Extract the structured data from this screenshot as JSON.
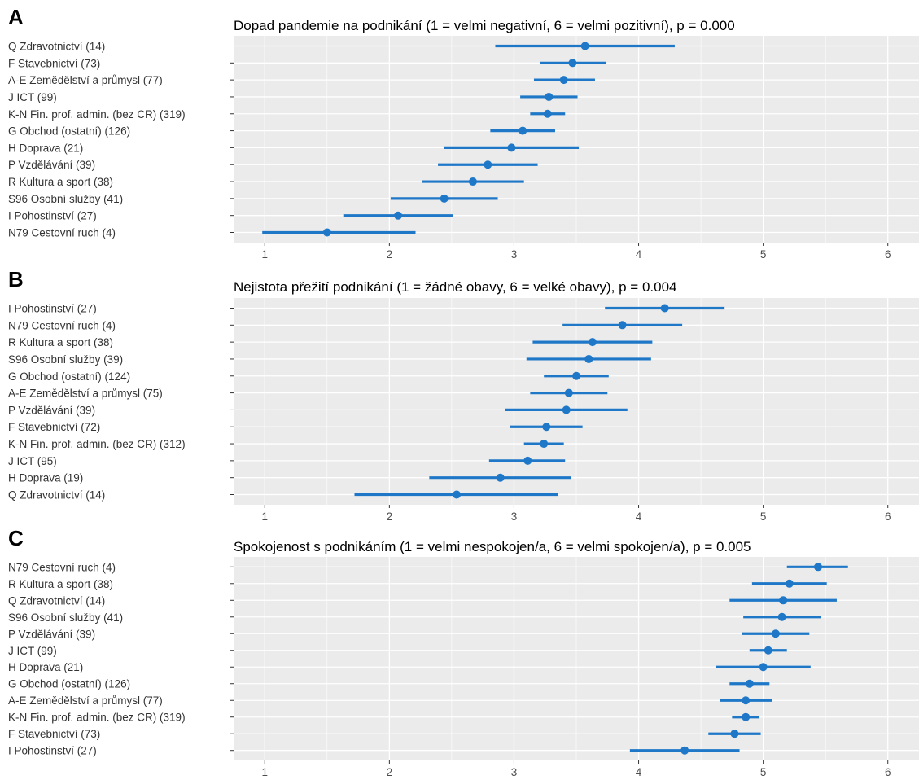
{
  "colors": {
    "panel_bg": "#EBEBEB",
    "grid": "#FFFFFF",
    "series": "#1F77C8",
    "tick": "#333333"
  },
  "chart_data": [
    {
      "type": "scatter",
      "panel": "A",
      "title": "Dopad pandemie na podnikání (1 = velmi negativní, 6 = velmi pozitivní), p = 0.000",
      "xlim": [
        0.75,
        6.25
      ],
      "xticks": [
        1,
        2,
        3,
        4,
        5,
        6
      ],
      "grid": true,
      "categories": [
        "Q Zdravotnictví (14)",
        "F Stavebnictví (73)",
        "A-E Zemědělství a průmysl (77)",
        "J ICT (99)",
        "K-N Fin. prof. admin. (bez CR) (319)",
        "G Obchod (ostatní) (126)",
        "H Doprava (21)",
        "P Vzdělávání (39)",
        "R Kultura a sport (38)",
        "S96 Osobní služby (41)",
        "I Pohostinství (27)",
        "N79 Cestovní ruch (4)"
      ],
      "values": [
        3.57,
        3.47,
        3.4,
        3.28,
        3.27,
        3.07,
        2.98,
        2.79,
        2.67,
        2.44,
        2.07,
        1.5
      ],
      "lower": [
        2.85,
        3.21,
        3.16,
        3.05,
        3.13,
        2.81,
        2.44,
        2.39,
        2.26,
        2.01,
        1.63,
        0.98
      ],
      "upper": [
        4.29,
        3.74,
        3.65,
        3.51,
        3.41,
        3.33,
        3.52,
        3.19,
        3.08,
        2.87,
        2.51,
        2.21
      ]
    },
    {
      "type": "scatter",
      "panel": "B",
      "title": "Nejistota přežití podnikání (1 = žádné obavy, 6 = velké obavy), p = 0.004",
      "xlim": [
        0.75,
        6.25
      ],
      "xticks": [
        1,
        2,
        3,
        4,
        5,
        6
      ],
      "grid": true,
      "categories": [
        "I Pohostinství (27)",
        "N79 Cestovní ruch (4)",
        "R Kultura a sport (38)",
        "S96 Osobní služby (39)",
        "G Obchod (ostatní) (124)",
        "A-E Zemědělství a průmysl (75)",
        "P Vzdělávání (39)",
        "F Stavebnictví (72)",
        "K-N Fin. prof. admin. (bez CR) (312)",
        "J ICT (95)",
        "H Doprava (19)",
        "Q Zdravotnictví (14)"
      ],
      "values": [
        4.21,
        3.87,
        3.63,
        3.6,
        3.5,
        3.44,
        3.42,
        3.26,
        3.24,
        3.11,
        2.89,
        2.54
      ],
      "lower": [
        3.73,
        3.39,
        3.15,
        3.1,
        3.24,
        3.13,
        2.93,
        2.97,
        3.08,
        2.8,
        2.32,
        1.72
      ],
      "upper": [
        4.69,
        4.35,
        4.11,
        4.1,
        3.76,
        3.75,
        3.91,
        3.55,
        3.4,
        3.41,
        3.46,
        3.35
      ]
    },
    {
      "type": "scatter",
      "panel": "C",
      "title": "Spokojenost s podnikáním (1 = velmi nespokojen/a, 6 = velmi spokojen/a), p = 0.005",
      "xlim": [
        0.75,
        6.25
      ],
      "xticks": [
        1,
        2,
        3,
        4,
        5,
        6
      ],
      "grid": true,
      "categories": [
        "N79 Cestovní ruch (4)",
        "R Kultura a sport (38)",
        "Q Zdravotnictví (14)",
        "S96 Osobní služby (41)",
        "P Vzdělávání (39)",
        "J ICT (99)",
        "H Doprava (21)",
        "G Obchod (ostatní) (126)",
        "A-E Zemědělství a průmysl (77)",
        "K-N Fin. prof. admin. (bez CR) (319)",
        "F Stavebnictví (73)",
        "I Pohostinství (27)"
      ],
      "values": [
        5.44,
        5.21,
        5.16,
        5.15,
        5.1,
        5.04,
        5.0,
        4.89,
        4.86,
        4.86,
        4.77,
        4.37
      ],
      "lower": [
        5.19,
        4.91,
        4.73,
        4.84,
        4.83,
        4.89,
        4.62,
        4.73,
        4.65,
        4.75,
        4.56,
        3.93
      ],
      "upper": [
        5.68,
        5.51,
        5.59,
        5.46,
        5.37,
        5.19,
        5.38,
        5.05,
        5.07,
        4.97,
        4.98,
        4.81
      ]
    }
  ]
}
